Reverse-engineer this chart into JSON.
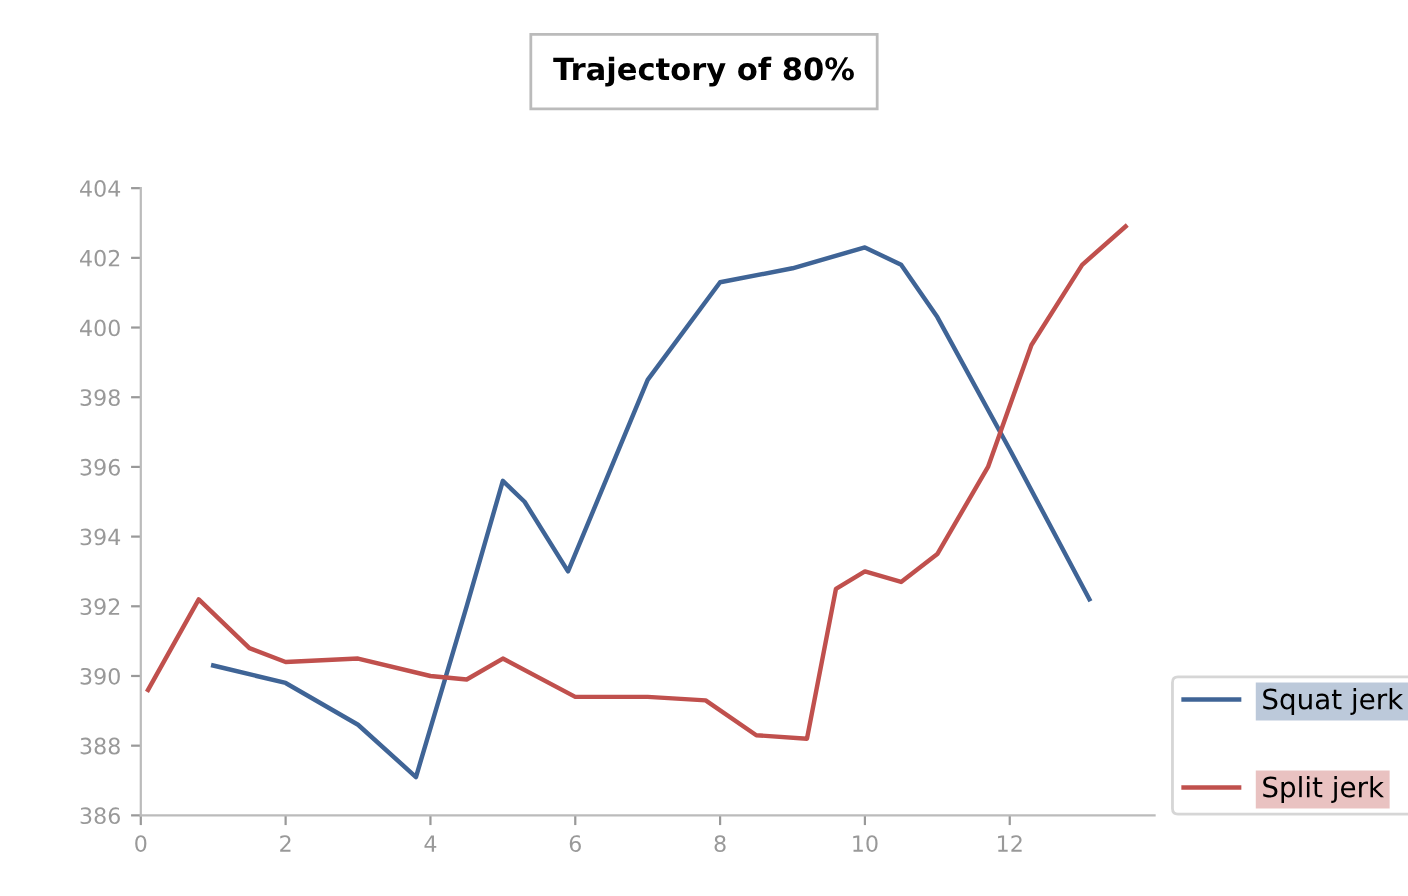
{
  "chart_data": {
    "type": "line",
    "title": "Trajectory of 80%",
    "series": [
      {
        "name": "Squat jerk",
        "color": "#3f6496",
        "x": [
          1,
          2,
          3,
          3.8,
          4.5,
          5,
          5.3,
          5.9,
          6.5,
          7,
          8,
          9,
          10,
          10.5,
          11,
          12,
          13.1
        ],
        "values": [
          390.3,
          389.8,
          388.6,
          387.1,
          392,
          395.6,
          395,
          393,
          396,
          398.5,
          401.3,
          401.7,
          402.3,
          401.8,
          400.3,
          396.5,
          392.2
        ]
      },
      {
        "name": "Split jerk",
        "color": "#c0504d",
        "x": [
          0.1,
          0.8,
          1.5,
          2,
          3,
          4,
          4.5,
          5,
          6,
          7,
          7.8,
          8.5,
          9.2,
          9.6,
          10,
          10.5,
          11,
          11.7,
          12.3,
          13,
          13.6
        ],
        "values": [
          389.6,
          392.2,
          390.8,
          390.4,
          390.5,
          390,
          389.9,
          390.5,
          389.4,
          389.4,
          389.3,
          388.3,
          388.2,
          392.5,
          393,
          392.7,
          393.5,
          396,
          399.5,
          401.8,
          402.9
        ]
      }
    ],
    "xlim": [
      0,
      14
    ],
    "xticks": [
      0,
      2,
      4,
      6,
      8,
      10,
      12
    ],
    "ylim": [
      386,
      404
    ],
    "yticks": [
      386,
      388,
      390,
      392,
      394,
      396,
      398,
      400,
      402,
      404
    ],
    "grid": false,
    "legend": "bottom right"
  }
}
